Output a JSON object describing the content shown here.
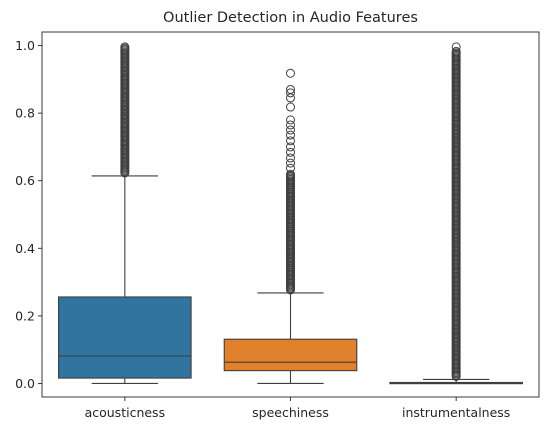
{
  "chart_data": {
    "type": "box",
    "title": "Outlier Detection in Audio Features",
    "xlabel": "",
    "ylabel": "",
    "ylim": [
      -0.04,
      1.04
    ],
    "yticks": [
      0.0,
      0.2,
      0.4,
      0.6,
      0.8,
      1.0
    ],
    "ytick_labels": [
      "0.0",
      "0.2",
      "0.4",
      "0.6",
      "0.8",
      "1.0"
    ],
    "grid": false,
    "categories": [
      "acousticness",
      "speechiness",
      "instrumentalness"
    ],
    "series": [
      {
        "category": "acousticness",
        "color": "#3274a1",
        "min": 0.0,
        "q1": 0.016,
        "median": 0.081,
        "q3": 0.256,
        "whisker_low": 0.0,
        "whisker_high": 0.614,
        "outlier_dense_range": [
          0.614,
          0.996
        ],
        "outliers": []
      },
      {
        "category": "speechiness",
        "color": "#e1812c",
        "q1": 0.038,
        "median": 0.063,
        "q3": 0.131,
        "whisker_low": 0.0,
        "whisker_high": 0.268,
        "outlier_dense_range": [
          0.268,
          0.62
        ],
        "outliers": [
          0.637,
          0.652,
          0.667,
          0.684,
          0.7,
          0.718,
          0.735,
          0.75,
          0.765,
          0.78,
          0.818,
          0.845,
          0.86,
          0.87,
          0.918
        ]
      },
      {
        "category": "instrumentalness",
        "color": "#3a923a",
        "q1": 0.0,
        "median": 0.0,
        "q3": 0.003,
        "whisker_low": 0.0,
        "whisker_high": 0.012,
        "outlier_dense_range": [
          0.012,
          0.985
        ],
        "outliers": [
          0.996
        ]
      }
    ]
  }
}
